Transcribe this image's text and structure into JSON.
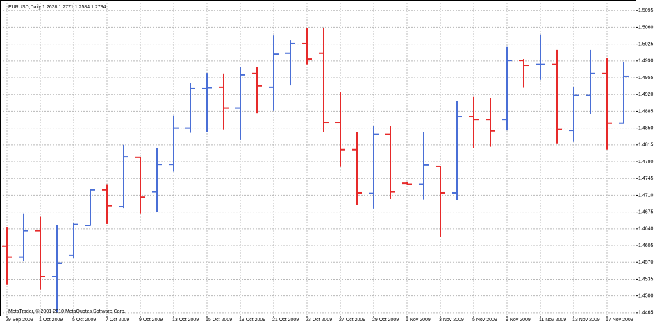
{
  "chart_data": {
    "type": "ohlc",
    "title": "EURUSD,Daily  1.2628 1.2771 1.2584 1.2734",
    "annotation": "MetaTrader, © 2001-2010 MetaQuotes Software Corp.",
    "categories": [
      "29 Sep 2009",
      null,
      "1 Oct 2009",
      null,
      "5 Oct 2009",
      null,
      "7 Oct 2009",
      null,
      "9 Oct 2009",
      null,
      "13 Oct 2009",
      null,
      "15 Oct 2009",
      null,
      "19 Oct 2009",
      null,
      "21 Oct 2009",
      null,
      "23 Oct 2009",
      null,
      "27 Oct 2009",
      null,
      "29 Oct 2009",
      null,
      "1 Nov 2009",
      null,
      "3 Nov 2009",
      null,
      "5 Nov 2009",
      null,
      "9 Nov 2009",
      null,
      "11 Nov 2009",
      null,
      "13 Nov 2009",
      null,
      "17 Nov 2009",
      null
    ],
    "open": [
      1.4604,
      1.4581,
      1.4636,
      1.454,
      1.4585,
      1.4647,
      1.4721,
      1.4686,
      1.4789,
      1.4717,
      1.4774,
      1.485,
      1.4932,
      1.4935,
      1.4892,
      1.4964,
      1.4935,
      1.5006,
      1.5026,
      1.5006,
      1.4861,
      1.4805,
      1.4714,
      1.4837,
      1.4735,
      1.4733,
      1.477,
      1.4715,
      1.4874,
      1.4868,
      1.4868,
      1.4991,
      1.4983,
      1.4983,
      1.4845,
      1.4918,
      1.4964,
      1.486
    ],
    "high": [
      1.4644,
      1.4672,
      1.4665,
      1.4647,
      1.4652,
      1.472,
      1.4733,
      1.4815,
      1.479,
      1.4809,
      1.4876,
      1.4944,
      1.4965,
      1.4964,
      1.4978,
      1.4978,
      1.5043,
      1.5033,
      1.5058,
      1.5059,
      1.4925,
      1.4841,
      1.4854,
      1.4855,
      1.4737,
      1.4842,
      1.477,
      1.4906,
      1.4915,
      1.4912,
      1.5019,
      1.4994,
      1.5045,
      1.5013,
      1.4935,
      1.5013,
      1.4997,
      1.4987
    ],
    "low": [
      1.4523,
      1.4573,
      1.4513,
      1.4466,
      1.4579,
      1.4646,
      1.465,
      1.4683,
      1.4672,
      1.4675,
      1.4759,
      1.484,
      1.4842,
      1.4847,
      1.4825,
      1.4881,
      1.4886,
      1.4939,
      1.4983,
      1.4842,
      1.4769,
      1.4689,
      1.4682,
      1.4702,
      1.4733,
      1.4701,
      1.4623,
      1.4699,
      1.4808,
      1.4811,
      1.4845,
      1.4934,
      1.4951,
      1.4818,
      1.4821,
      1.4879,
      1.4805,
      1.486
    ],
    "close": [
      1.4581,
      1.4636,
      1.454,
      1.4568,
      1.4649,
      1.4721,
      1.4688,
      1.479,
      1.4706,
      1.4774,
      1.485,
      1.4932,
      1.4934,
      1.4892,
      1.4961,
      1.4938,
      1.5004,
      1.5026,
      1.4994,
      1.4861,
      1.4805,
      1.4715,
      1.4837,
      1.4717,
      1.4733,
      1.4773,
      1.4715,
      1.4874,
      1.4868,
      1.4844,
      1.4991,
      1.4981,
      1.4983,
      1.4847,
      1.4918,
      1.4964,
      1.486,
      1.4958
    ],
    "up_color": "#4a6fd6",
    "down_color": "#e62a2a",
    "ylim": [
      1.4459,
      1.5117
    ],
    "yticks": [
      1.5095,
      {
        "value": 1.506,
        "label": "1.5060"
      },
      1.5025,
      {
        "value": 1.499,
        "label": "1.4990"
      },
      1.4955,
      {
        "value": 1.492,
        "label": "1.4920"
      },
      1.4885,
      {
        "value": 1.485,
        "label": "1.4850"
      },
      1.4815,
      {
        "value": 1.478,
        "label": "1.4780"
      },
      1.4745,
      {
        "value": 1.471,
        "label": "1.4710"
      },
      1.4675,
      {
        "value": 1.464,
        "label": "1.4640"
      },
      1.4605,
      {
        "value": 1.457,
        "label": "1.4570"
      },
      1.4535,
      {
        "value": 1.45,
        "label": "1.4500"
      },
      1.4465
    ],
    "grid": true
  }
}
